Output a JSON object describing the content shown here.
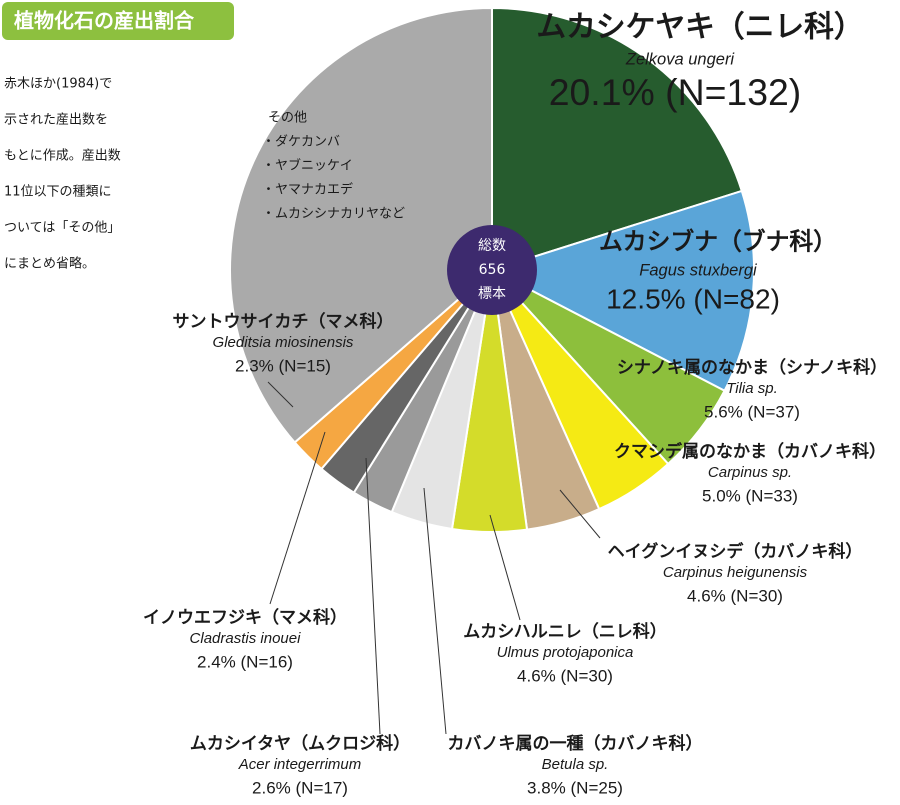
{
  "chart_data": {
    "type": "pie",
    "title": "植物化石の産出割合",
    "note": [
      "赤木ほか(1984)で",
      "示された産出数を",
      "もとに作成。産出数",
      "11位以下の種類に",
      "ついては「その他」",
      "にまとめ省略。"
    ],
    "center": {
      "top": "総数",
      "total": 656,
      "bottom": "標本"
    },
    "categories": [
      "ムカシケヤキ（ニレ科）",
      "ムカシブナ（ブナ科）",
      "シナノキ属のなかま（シナノキ科）",
      "クマシデ属のなかま（カバノキ科）",
      "ヘイグンイヌシデ（カバノキ科）",
      "ムカシハルニレ（ニレ科）",
      "カバノキ属の一種（カバノキ科）",
      "ムカシイタヤ（ムクロジ科）",
      "イノウエフジキ（マメ科）",
      "サントウサイカチ（マメ科）",
      "その他"
    ],
    "latin": [
      "Zelkova ungeri",
      "Fagus stuxbergi",
      "Tilia sp.",
      "Carpinus sp.",
      "Carpinus heigunensis",
      "Ulmus protojaponica",
      "Betula sp.",
      "Acer integerrimum",
      "Cladrastis inouei",
      "Gleditsia miosinensis",
      null
    ],
    "values": [
      132,
      82,
      37,
      33,
      30,
      30,
      25,
      17,
      16,
      15,
      239
    ],
    "value_labels": [
      "20.1% (N=132)",
      "12.5% (N=82)",
      "5.6% (N=37)",
      "5.0% (N=33)",
      "4.6% (N=30)",
      "4.6% (N=30)",
      "3.8% (N=25)",
      "2.6% (N=17)",
      "2.4% (N=16)",
      "2.3% (N=15)",
      null
    ],
    "colors": [
      "#265c2e",
      "#5aa5d8",
      "#8dbf3c",
      "#f5ea14",
      "#c8ad8a",
      "#d4dc2a",
      "#e4e4e4",
      "#9a9a9a",
      "#666666",
      "#f5a742",
      "#aaaaaa"
    ],
    "other_items": [
      "・ダケカンバ",
      "・ヤブニッケイ",
      "・ヤマナカエデ",
      "・ムカシシナカリヤなど"
    ]
  }
}
